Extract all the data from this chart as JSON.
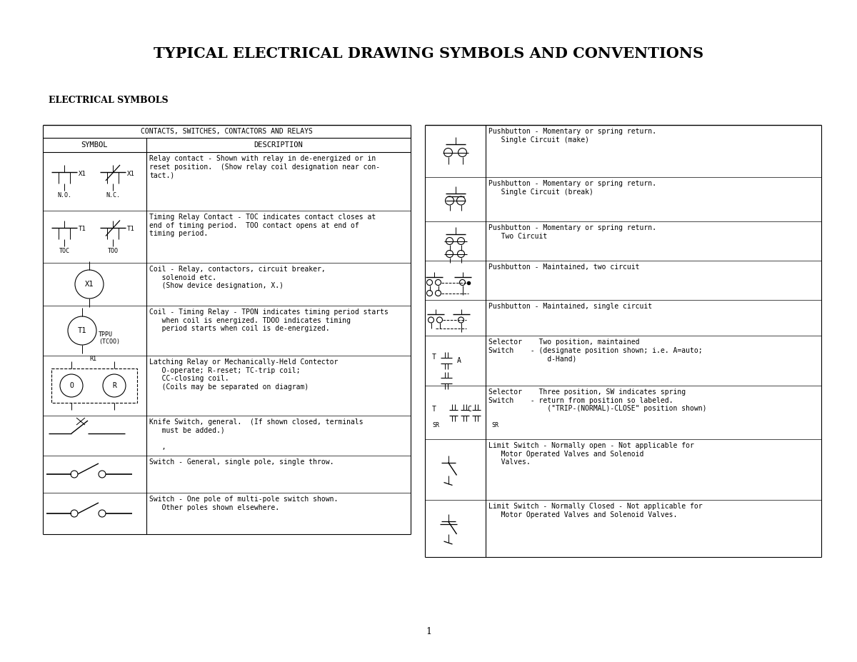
{
  "title": "TYPICAL ELECTRICAL DRAWING SYMBOLS AND CONVENTIONS",
  "subtitle": "ELECTRICAL SYMBOLS",
  "section_header": "CONTACTS, SWITCHES, CONTACTORS AND RELAYS",
  "col1_header": "SYMBOL",
  "col2_header": "DESCRIPTION",
  "bg_color": "#ffffff",
  "page_number": "1",
  "left_desc": [
    "Relay contact - Shown with relay in de-energized or in\nreset position.  (Show relay coil designation near con-\ntact.)",
    "Timing Relay Contact - TOC indicates contact closes at\nend of timing period.  TOO contact opens at end of\ntiming period.",
    "Coil - Relay, contactors, circuit breaker,\n   solenoid etc.\n   (Show device designation, X.)",
    "Coil - Timing Relay - TPON indicates timing period starts\n   when coil is energized. TDOO indicates timing\n   period starts when coil is de-energized.",
    "Latching Relay or Mechanically-Held Contector\n   O-operate; R-reset; TC-trip coil;\n   CC-closing coil.\n   (Coils may be separated on diagram)",
    "Knife Switch, general.  (If shown closed, terminals\n   must be added.)\n\n   ,",
    "Switch - General, single pole, single throw.",
    "Switch - One pole of multi-pole switch shown.\n   Other poles shown elsewhere."
  ],
  "right_desc": [
    "Pushbutton - Momentary or spring return.\n   Single Circuit (make)",
    "Pushbutton - Momentary or spring return.\n   Single Circuit (break)",
    "Pushbutton - Momentary or spring return.\n   Two Circuit",
    "Pushbutton - Maintained, two circuit",
    "Pushbutton - Maintained, single circuit",
    "Selector    Two position, maintained\nSwitch    - (designate position shown; i.e. A=auto;\n              d-Hand)",
    "Selector    Three position, SW indicates spring\nSwitch    - return from position so labeled.\n              (\"TRIP-(NORMAL)-CLOSE\" position shown)",
    "Limit Switch - Normally open - Not applicable for\n   Motor Operated Valves and Solenoid\n   Valves.",
    "Limit Switch - Normally Closed - Not applicable for\n   Motor Operated Valves and Solenoid Valves."
  ]
}
